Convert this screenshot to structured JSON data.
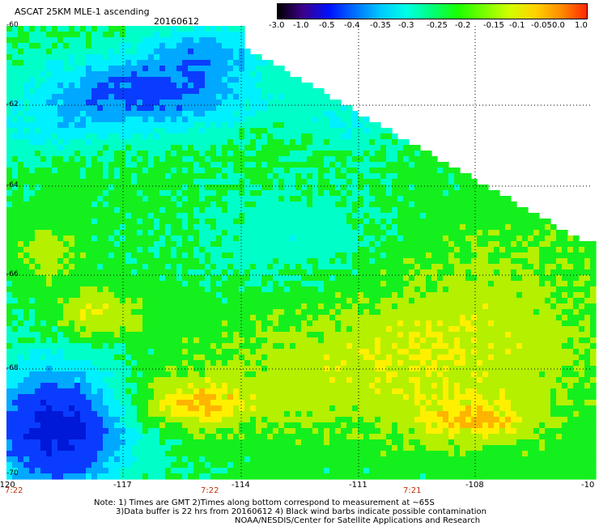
{
  "header": {
    "product": "ASCAT 25KM MLE-1 ascending",
    "date": "20160612"
  },
  "colorbar": {
    "labels": [
      "-3.0",
      "-1.0",
      "-0.5",
      "-0.4",
      "-0.35",
      "-0.3",
      "-0.25",
      "-0.2",
      "-0.15",
      "-0.1",
      "-0.05",
      "0.0",
      "1.0"
    ],
    "colors": [
      "#000000",
      "#3c008c",
      "#0010ff",
      "#0070ff",
      "#00c8ff",
      "#00ffe6",
      "#00ff78",
      "#1aff00",
      "#78ff00",
      "#d2ff00",
      "#ffd200",
      "#ff8c00",
      "#ff2800"
    ]
  },
  "map": {
    "x_axis": {
      "labels": [
        "-120",
        "-117",
        "-114",
        "-111",
        "-108",
        "-10"
      ]
    },
    "y_axis": {
      "labels": [
        "-60",
        "-62",
        "-64",
        "-66",
        "-68",
        "-70"
      ]
    },
    "time_labels": [
      "7:22",
      "7:22",
      "7:21"
    ],
    "palette": {
      "blue": "#0a3cff",
      "light_blue": "#00a8ff",
      "cyan": "#00f0ff",
      "aqua": "#00ffc8",
      "green": "#14f01e",
      "yellow_green": "#b4f000",
      "yellow": "#fff000",
      "orange": "#ffb400",
      "dark_blue": "#0018d8"
    }
  },
  "footer": {
    "note_line1": "Note: 1) Times are GMT 2)Times along bottom correspond to measurement at ~65S",
    "note_line2": "3)Data buffer is 22 hrs from 20160612 4) Black wind barbs indicate possible contamination",
    "note_line3": "NOAA/NESDIS/Center for Satellite Applications and Research"
  }
}
